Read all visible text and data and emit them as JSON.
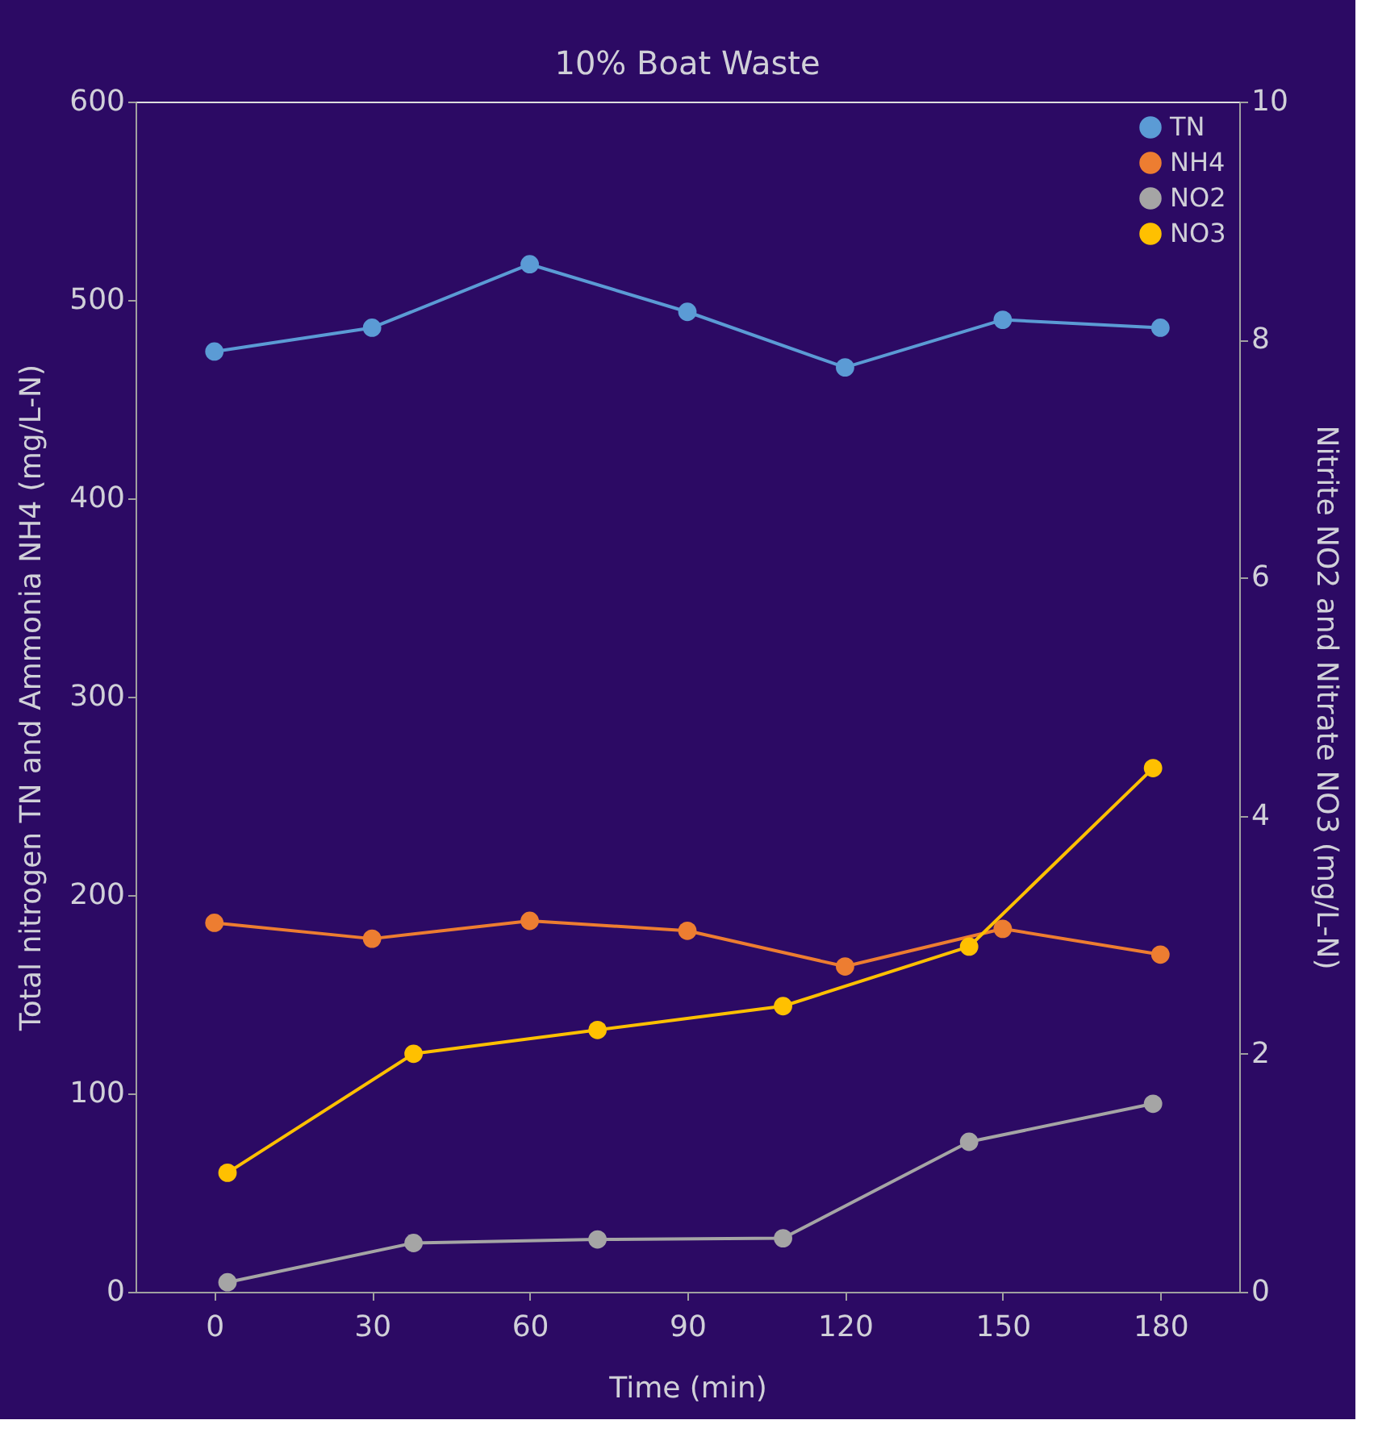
{
  "chart_data": {
    "type": "line",
    "title": "10% Boat Waste",
    "xlabel": "Time (min)",
    "ylabel": "Total nitrogen TN and Ammonia NH4 (mg/L-N)",
    "y2label": "Nitrite NO2 and Nitrate NO3 (mg/L-N)",
    "x": [
      0,
      30,
      60,
      90,
      120,
      150,
      180
    ],
    "xlim": [
      -15,
      195
    ],
    "xticks": [
      0,
      30,
      60,
      90,
      120,
      150,
      180
    ],
    "ylim": [
      0,
      600
    ],
    "yticks": [
      0,
      100,
      200,
      300,
      400,
      500,
      600
    ],
    "y2lim": [
      0,
      10
    ],
    "y2ticks": [
      0,
      2,
      4,
      6,
      8,
      10
    ],
    "marker": "circle",
    "line_style": "solid",
    "grid": false,
    "legend": "top right",
    "series": [
      {
        "name": "TN",
        "color": "#5b9bd5",
        "values": [
          474,
          486,
          518,
          494,
          466,
          490,
          486
        ]
      },
      {
        "name": "NH4",
        "color": "#ed7d31",
        "values": [
          186,
          178,
          187,
          182,
          164,
          183,
          170
        ]
      },
      {
        "name": "NO2",
        "color": "#a5a5a5",
        "axis": "y2",
        "x": [
          2.5,
          37.9,
          72.9,
          108.2,
          143.6,
          178.6
        ],
        "values": [
          0.08,
          0.41,
          0.44,
          0.45,
          1.26,
          1.58
        ]
      },
      {
        "name": "NO3",
        "color": "#ffc000",
        "axis": "y2",
        "x": [
          2.5,
          37.9,
          72.9,
          108.2,
          143.6,
          178.6
        ],
        "values": [
          1.0,
          2.0,
          2.2,
          2.4,
          2.9,
          4.4
        ]
      }
    ]
  }
}
